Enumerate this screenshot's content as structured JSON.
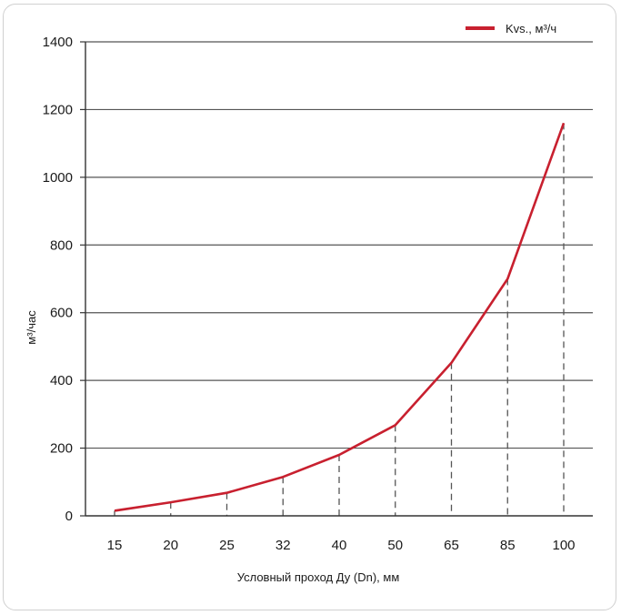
{
  "chart_data": {
    "type": "line",
    "categories": [
      "15",
      "20",
      "25",
      "32",
      "40",
      "50",
      "65",
      "85",
      "100"
    ],
    "series": [
      {
        "name": "Kvs., м³/ч",
        "values": [
          15,
          40,
          68,
          115,
          180,
          268,
          452,
          700,
          1160
        ],
        "color": "#c8202f"
      }
    ],
    "xlabel": "Условный проход Ду (Dn), мм",
    "ylabel": "м³/час",
    "ylim": [
      0,
      1400
    ],
    "yticks": [
      0,
      200,
      400,
      600,
      800,
      1000,
      1200,
      1400
    ],
    "grid": true,
    "legend": "top-right"
  }
}
